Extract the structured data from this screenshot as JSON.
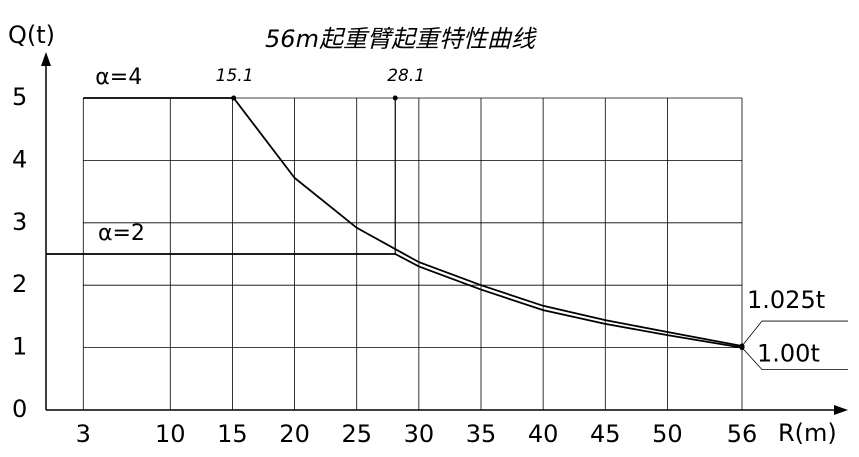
{
  "chart_data": {
    "type": "line",
    "title": "56m起重臂起重特性曲线",
    "x_label": "R(m)",
    "y_label": "Q(t)",
    "xlim": [
      0,
      56
    ],
    "ylim": [
      0,
      5
    ],
    "xticks": [
      3,
      10,
      15,
      20,
      25,
      30,
      35,
      40,
      45,
      50,
      56
    ],
    "yticks": [
      0,
      1,
      2,
      3,
      4,
      5
    ],
    "grid": true,
    "series": [
      {
        "name": "α=4",
        "color": "#000000",
        "x": [
          3,
          15.1,
          20,
          25,
          30,
          35,
          40,
          45,
          50,
          56
        ],
        "values": [
          5,
          5,
          3.72,
          2.92,
          2.37,
          2.0,
          1.67,
          1.44,
          1.25,
          1.025
        ]
      },
      {
        "name": "α=2",
        "color": "#000000",
        "x": [
          0,
          28.1,
          30,
          35,
          40,
          45,
          50,
          56
        ],
        "values": [
          2.5,
          2.5,
          2.3,
          1.93,
          1.6,
          1.38,
          1.2,
          1.0
        ]
      }
    ],
    "annotations": [
      {
        "text": "15.1",
        "x": 15.1,
        "y": 5
      },
      {
        "text": "28.1",
        "x": 28.1,
        "y": 5
      },
      {
        "text": "1.025t",
        "x": 56,
        "y": 1.025
      },
      {
        "text": "1.00t",
        "x": 56,
        "y": 1.0
      }
    ]
  }
}
